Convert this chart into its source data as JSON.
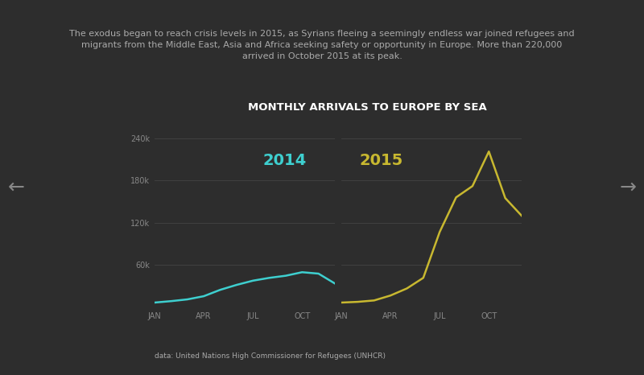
{
  "background_color": "#2d2d2d",
  "title": "MONTHLY ARRIVALS TO EUROPE BY SEA",
  "title_color": "#ffffff",
  "title_fontsize": 9.5,
  "subtitle": "The exodus began to reach crisis levels in 2015, as Syrians fleeing a seemingly endless war joined refugees and\nmigrants from the Middle East, Asia and Africa seeking safety or opportunity in Europe. More than 220,000\narrived in October 2015 at its peak.",
  "subtitle_color": "#aaaaaa",
  "subtitle_fontsize": 8,
  "data_note": "data: United Nations High Commissioner for Refugees (UNHCR)",
  "data_note_color": "#aaaaaa",
  "data_note_fontsize": 6.5,
  "months_2014": [
    1,
    2,
    3,
    4,
    5,
    6,
    7,
    8,
    9,
    10,
    11,
    12
  ],
  "values_2014": [
    7000,
    9000,
    11500,
    16000,
    25000,
    32000,
    38000,
    42000,
    45000,
    50000,
    48000,
    34000
  ],
  "months_2015": [
    1,
    2,
    3,
    4,
    5,
    6,
    7,
    8,
    9,
    10,
    11,
    12
  ],
  "values_2015": [
    7000,
    8000,
    10000,
    17000,
    27000,
    42000,
    107000,
    156000,
    172000,
    221000,
    155000,
    130000
  ],
  "color_2014": "#3ecfcf",
  "color_2015": "#c8b830",
  "label_2014": "2014",
  "label_2015": "2015",
  "label_fontsize": 14,
  "yticks": [
    0,
    60000,
    120000,
    180000,
    240000
  ],
  "ytick_labels": [
    "",
    "60k",
    "120k",
    "180k",
    "240k"
  ],
  "xtick_labels": [
    "JAN",
    "APR",
    "JUL",
    "OCT"
  ],
  "xtick_positions": [
    1,
    4,
    7,
    10
  ],
  "ylim": [
    0,
    255000
  ],
  "grid_color": "#444444",
  "tick_color": "#888888",
  "tick_fontsize": 7,
  "nav_arrow_color": "#888888"
}
